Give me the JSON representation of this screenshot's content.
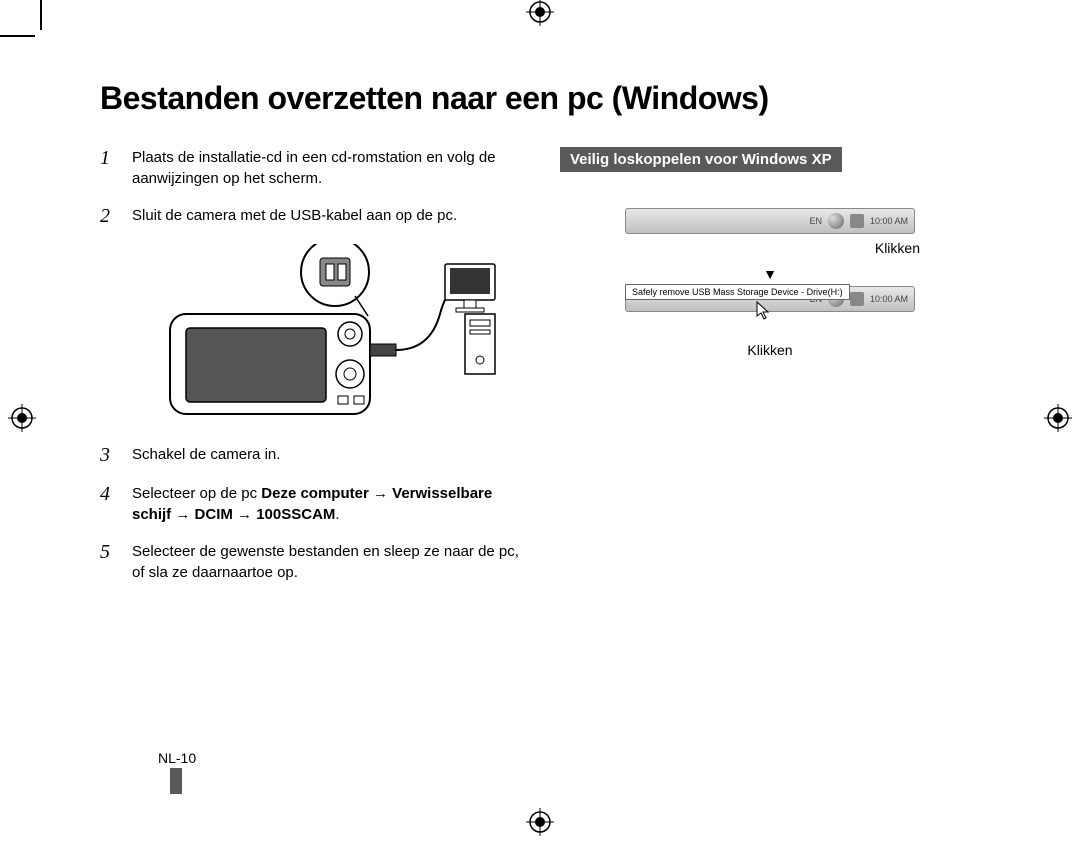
{
  "title": "Bestanden overzetten naar een pc (Windows)",
  "steps": [
    {
      "num": "1",
      "text": "Plaats de installatie-cd in een cd-romstation en volg de aanwijzingen op het scherm."
    },
    {
      "num": "2",
      "text": "Sluit de camera met de USB-kabel aan op de pc."
    },
    {
      "num": "3",
      "text": "Schakel de camera in."
    },
    {
      "num": "4",
      "html": "Selecteer op de pc <b>Deze computer</b> → <b>Verwisselbare schijf</b> → <b>DCIM</b> → <b>100SSCAM</b>."
    },
    {
      "num": "5",
      "text": "Selecteer de gewenste bestanden en sleep ze naar de pc, of sla ze daarnaartoe op."
    }
  ],
  "right": {
    "subsection_title": "Veilig loskoppelen voor Windows XP",
    "taskbar": {
      "lang": "EN",
      "time": "10:00 AM"
    },
    "click_label": "Klikken",
    "arrow": "▼",
    "tooltip_text": "Safely remove USB Mass Storage Device - Drive(H:)"
  },
  "page_number": "NL-10",
  "colors": {
    "text": "#000000",
    "subsection_bg": "#5a5a5a",
    "subsection_fg": "#ffffff",
    "taskbar_border": "#888888"
  }
}
